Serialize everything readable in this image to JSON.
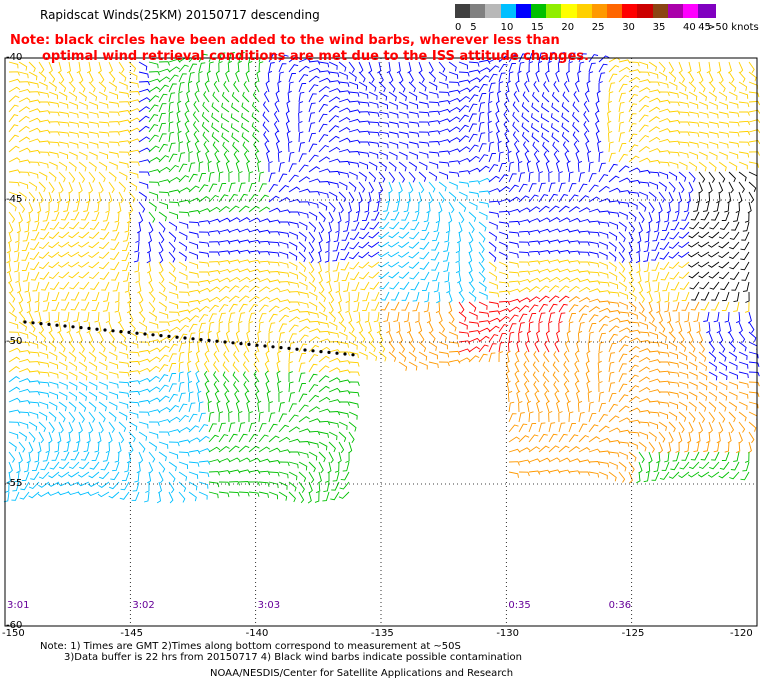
{
  "title": "Rapidscat Winds(25KM) 20150717 descending",
  "note_line1": "Note: black circles have been added to the wind barbs, wherever less than",
  "note_line2": "optimal wind retrieval conditions are met due to the ISS attitude changes.",
  "legend": {
    "unit": ">50 knots",
    "bins": [
      {
        "label": "0",
        "color": "#404040"
      },
      {
        "label": "5",
        "color": "#808080"
      },
      {
        "label": "",
        "color": "#b8b8b8"
      },
      {
        "label": "10",
        "color": "#00bfff"
      },
      {
        "label": "",
        "color": "#0000ff"
      },
      {
        "label": "15",
        "color": "#00c000"
      },
      {
        "label": "",
        "color": "#90ee00"
      },
      {
        "label": "20",
        "color": "#ffff00"
      },
      {
        "label": "",
        "color": "#ffd000"
      },
      {
        "label": "25",
        "color": "#ff9900"
      },
      {
        "label": "",
        "color": "#ff6600"
      },
      {
        "label": "30",
        "color": "#ff0000"
      },
      {
        "label": "",
        "color": "#cc0000"
      },
      {
        "label": "35",
        "color": "#8b4513"
      },
      {
        "label": "",
        "color": "#aa00aa"
      },
      {
        "label": "40",
        "color": "#ff00ff"
      },
      {
        "label": "45",
        "color": "#8000c0"
      }
    ]
  },
  "latitudes": [
    "-40",
    "-45",
    "-50",
    "-55",
    "-60"
  ],
  "longitudes": [
    "-150",
    "-145",
    "-140",
    "-135",
    "-130",
    "-125",
    "-120"
  ],
  "pass_times": [
    "3:01",
    "3:02",
    "3:03",
    "0:35",
    "0:36"
  ],
  "footnote_line1": "Note: 1) Times are GMT 2)Times along bottom correspond to measurement at ~50S",
  "footnote_line2": "3)Data buffer is 22 hrs from 20150717 4) Black wind barbs indicate possible contamination",
  "credit": "NOAA/NESDIS/Center for Satellite Applications and Research",
  "map": {
    "lon_range": [
      -150,
      -120
    ],
    "lat_range": [
      -60,
      -40
    ],
    "grid_spacing_deg": 5,
    "barb_color_scale": [
      "#0000ff",
      "#00bfff",
      "#00c000",
      "#ffd000",
      "#ff9900",
      "#ff0000",
      "#8b4513",
      "#ff00ff",
      "#000000"
    ]
  }
}
